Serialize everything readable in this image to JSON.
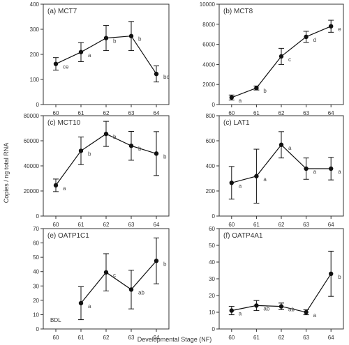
{
  "figure": {
    "ylabel": "Copies / ng total RNA",
    "xlabel": "Developmental Stage (NF)"
  },
  "chart_data": [
    {
      "type": "line",
      "title": "(a) MCT7",
      "x": [
        "60",
        "61",
        "62",
        "63",
        "64"
      ],
      "values": [
        162,
        209,
        265,
        273,
        122
      ],
      "errors": [
        25,
        38,
        50,
        58,
        32
      ],
      "letters": [
        "ce",
        "a",
        "b",
        "b",
        "bc"
      ],
      "ylim": [
        0,
        400
      ],
      "yticks": [
        "0",
        "100",
        "200",
        "300",
        "400"
      ]
    },
    {
      "type": "line",
      "title": "(b) MCT8",
      "x": [
        "60",
        "61",
        "62",
        "63",
        "64"
      ],
      "values": [
        700,
        1650,
        4800,
        6750,
        7800
      ],
      "errors": [
        250,
        200,
        800,
        550,
        600
      ],
      "letters": [
        "a",
        "b",
        "c",
        "d",
        "e"
      ],
      "ylim": [
        0,
        10000
      ],
      "yticks": [
        "0",
        "2000",
        "4000",
        "6000",
        "8000",
        "10000"
      ]
    },
    {
      "type": "line",
      "title": "(c) MCT10",
      "x": [
        "60",
        "61",
        "62",
        "63",
        "64"
      ],
      "values": [
        24500,
        52000,
        65500,
        56000,
        49800
      ],
      "errors": [
        5000,
        11000,
        10000,
        11500,
        17500
      ],
      "letters": [
        "a",
        "b",
        "b",
        "b",
        "b"
      ],
      "ylim": [
        0,
        80000
      ],
      "yticks": [
        "0",
        "20000",
        "40000",
        "60000",
        "80000"
      ]
    },
    {
      "type": "line",
      "title": "(c) LAT1",
      "x": [
        "60",
        "61",
        "62",
        "63",
        "64"
      ],
      "values": [
        265,
        318,
        568,
        378,
        378
      ],
      "errors": [
        130,
        215,
        105,
        85,
        90
      ],
      "letters": [
        "a",
        "a",
        "a",
        "a",
        "a"
      ],
      "ylim": [
        0,
        800
      ],
      "yticks": [
        "0",
        "200",
        "400",
        "600",
        "800"
      ]
    },
    {
      "type": "line",
      "title": "(e) OATP1C1",
      "x": [
        "60",
        "61",
        "62",
        "63",
        "64"
      ],
      "values": [
        null,
        18,
        39.5,
        27.5,
        47.5
      ],
      "errors": [
        null,
        11.5,
        13,
        13.5,
        16
      ],
      "letters": [
        "",
        "a",
        "c",
        "ab",
        "b"
      ],
      "note": "BDL",
      "ylim": [
        0,
        70
      ],
      "yticks": [
        "0",
        "10",
        "20",
        "30",
        "40",
        "50",
        "60",
        "70"
      ]
    },
    {
      "type": "line",
      "title": "(f) OATP4A1",
      "x": [
        "60",
        "61",
        "62",
        "63",
        "64"
      ],
      "values": [
        11,
        14,
        13.5,
        10,
        33
      ],
      "errors": [
        2.5,
        3,
        2,
        1.5,
        13.5
      ],
      "letters": [
        "a",
        "ab",
        "ab",
        "a",
        "b"
      ],
      "ylim": [
        0,
        60
      ],
      "yticks": [
        "0",
        "10",
        "20",
        "30",
        "40",
        "50",
        "60"
      ]
    }
  ]
}
